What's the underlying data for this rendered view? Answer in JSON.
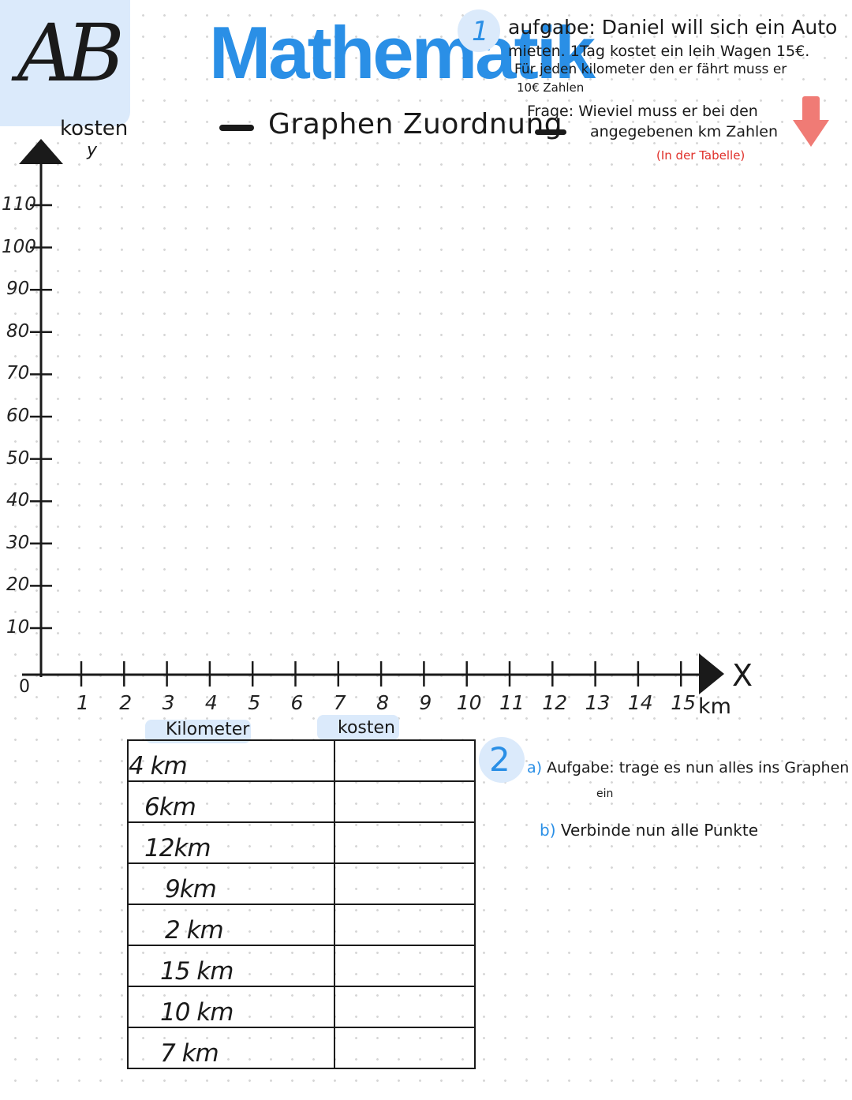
{
  "badge": {
    "text": "AB"
  },
  "header": {
    "title": "Mathematik",
    "subtitle": "Graphen Zuordnung"
  },
  "task1": {
    "number": "1",
    "line1": "aufgabe: Daniel will sich ein Auto",
    "line2": "mieten. 1Tag kostet ein leih Wagen 15€.",
    "line3": "Für jeden kilometer den er fährt muss er",
    "line4": "10€ Zahlen",
    "line5": "Frage: Wieviel muss er bei den",
    "line6": "angegebenen km Zahlen",
    "line7": "(In der Tabelle)"
  },
  "graph": {
    "y_title": "kosten",
    "y_letter": "y",
    "x_letter": "X",
    "x_unit": "km",
    "origin": "0",
    "y_ticks": [
      "110",
      "100",
      "90",
      "80",
      "70",
      "60",
      "50",
      "40",
      "30",
      "20",
      "10"
    ],
    "x_ticks": [
      "1",
      "2",
      "3",
      "4",
      "5",
      "6",
      "7",
      "8",
      "9",
      "10",
      "11",
      "12",
      "13",
      "14",
      "15"
    ]
  },
  "table": {
    "col1_header": "Kilometer",
    "col2_header": "kosten",
    "rows": [
      {
        "km": "4 km",
        "cost": ""
      },
      {
        "km": "6km",
        "cost": ""
      },
      {
        "km": "12km",
        "cost": ""
      },
      {
        "km": "9km",
        "cost": ""
      },
      {
        "km": "2 km",
        "cost": ""
      },
      {
        "km": "15 km",
        "cost": ""
      },
      {
        "km": "10 km",
        "cost": ""
      },
      {
        "km": "7 km",
        "cost": ""
      }
    ]
  },
  "task2": {
    "number": "2",
    "a_marker": "a)",
    "a_text": "Aufgabe: trage es nun alles ins Graphen",
    "a_cont": "ein",
    "b_marker": "b)",
    "b_text": "Verbinde nun alle Punkte"
  },
  "colors": {
    "accent_blue": "#2a8fe6",
    "highlight": "#dbeafb",
    "arrow_red": "#f07b75",
    "note_red": "#e0302a"
  },
  "icons": {
    "down_arrow": "arrow-down-icon"
  }
}
